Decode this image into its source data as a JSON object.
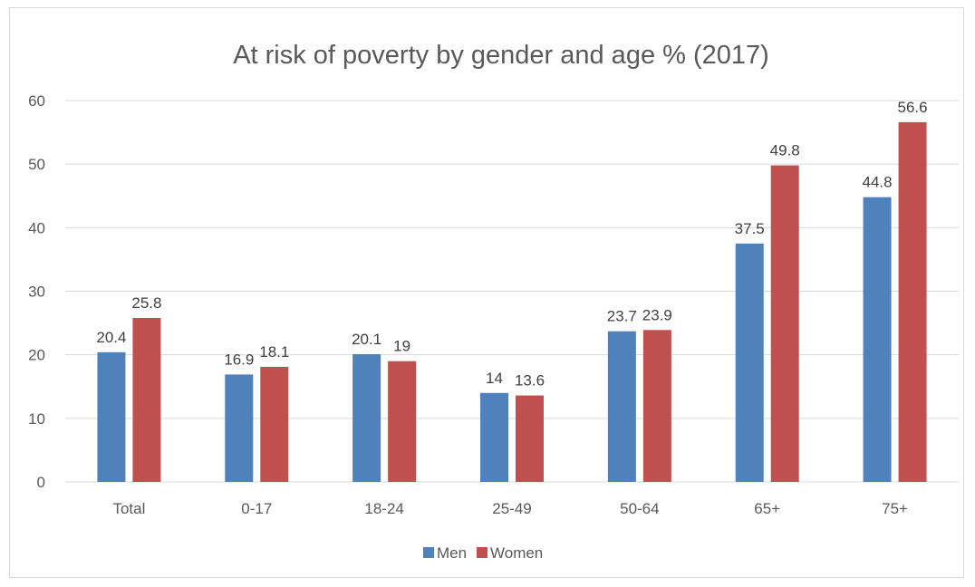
{
  "chart_data": {
    "type": "bar",
    "title": "At risk of poverty by gender and age  % (2017)",
    "xlabel": "",
    "ylabel": "",
    "categories": [
      "Total",
      "0-17",
      "18-24",
      "25-49",
      "50-64",
      "65+",
      "75+"
    ],
    "series": [
      {
        "name": "Men",
        "color": "#4f81bd",
        "values": [
          20.4,
          16.9,
          20.1,
          14,
          23.7,
          37.5,
          44.8
        ]
      },
      {
        "name": "Women",
        "color": "#c0504d",
        "values": [
          25.8,
          18.1,
          19,
          13.6,
          23.9,
          49.8,
          56.6
        ]
      }
    ],
    "ylim": [
      0,
      60
    ],
    "yticks": [
      0,
      10,
      20,
      30,
      40,
      50,
      60
    ],
    "grid": true,
    "legend": "bottom",
    "gridColor": "#d9d9d9"
  }
}
